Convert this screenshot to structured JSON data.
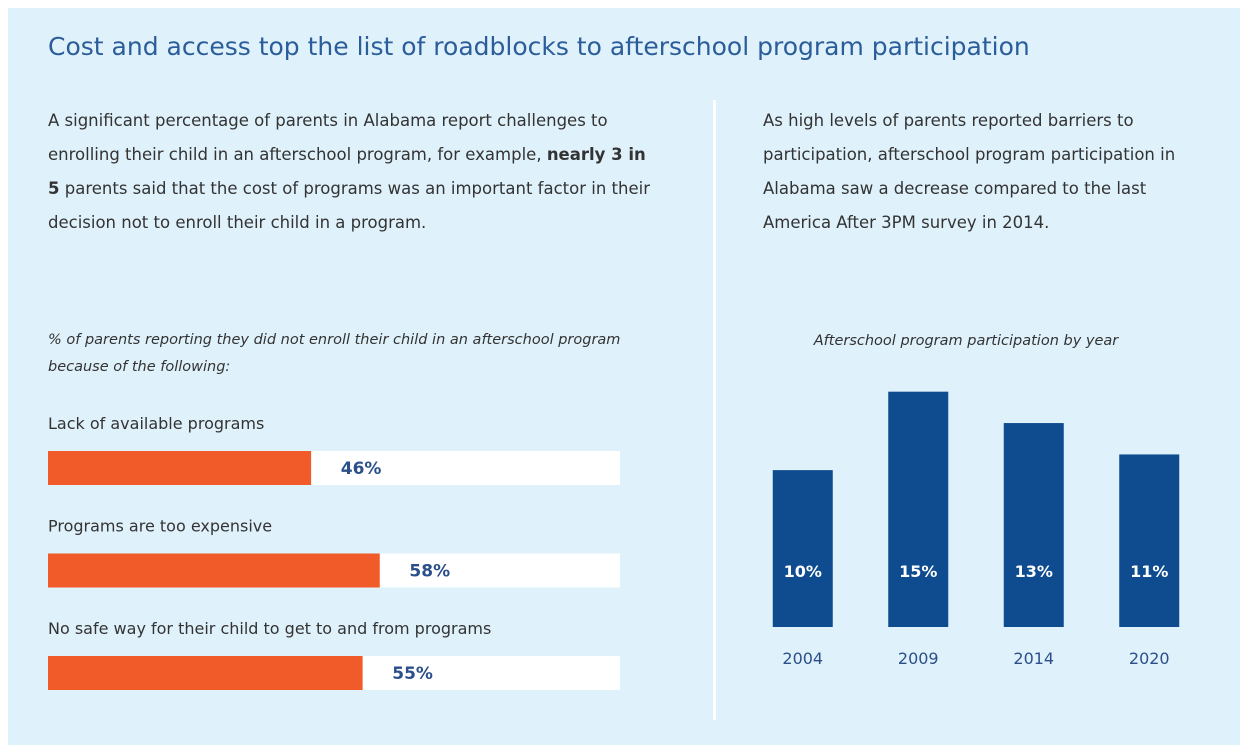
{
  "title": "Cost and access top the list of roadblocks to afterschool program participation",
  "left_text": [
    "A significant percentage of parents in Alabama report challenges to enrolling their child in an afterschool program, for example, ",
    "nearly 3 in 5",
    " parents said that the cost of programs was an important factor in their decision not to enroll their child in a program."
  ],
  "right_text": "As high levels of parents reported barriers to participation, afterschool program participation in Alabama saw a decrease compared to the last America After 3PM survey in 2014.",
  "chart_data": [
    {
      "type": "hbar",
      "title": "% of parents reporting they did not enroll their child in an afterschool program because of the following:",
      "categories": [
        "Lack of available programs",
        "Programs are too expensive",
        "No safe way for their child to get to and from programs"
      ],
      "values": [
        46,
        58,
        55
      ],
      "value_labels": [
        "46%",
        "58%",
        "55%"
      ],
      "color": "#f15a29",
      "track_color": "#ffffff",
      "xlim": [
        0,
        100
      ]
    },
    {
      "type": "bar",
      "title": "Afterschool program participation by year",
      "categories": [
        "2004",
        "2009",
        "2014",
        "2020"
      ],
      "values": [
        10,
        15,
        13,
        11
      ],
      "value_labels": [
        "10%",
        "15%",
        "13%",
        "11%"
      ],
      "color": "#0e4c8f",
      "ylim": [
        0,
        16
      ]
    }
  ]
}
